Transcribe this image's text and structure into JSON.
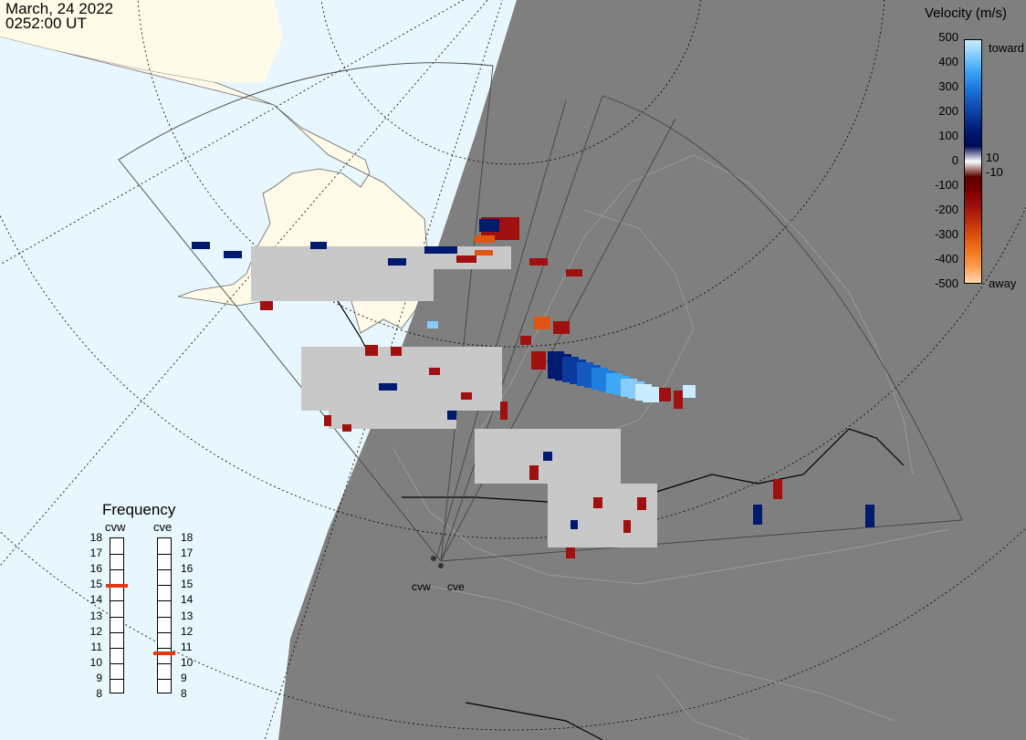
{
  "header": {
    "date": "March, 24 2022",
    "time": "0252:00 UT"
  },
  "legend": {
    "title": "Velocity (m/s)",
    "ticks": [
      "500",
      "400",
      "300",
      "200",
      "100",
      "10",
      "0",
      "-10",
      "-100",
      "-200",
      "-300",
      "-400",
      "-500"
    ],
    "toward_label": "toward",
    "away_label": "away",
    "colors": {
      "positive": [
        "#c9ecff",
        "#86ccff",
        "#3fa8f5",
        "#1f7fe0",
        "#1458c0",
        "#0a3a9c",
        "#001a70",
        "#000a55"
      ],
      "negative": [
        "#5a0000",
        "#7d0000",
        "#a01010",
        "#c0300a",
        "#e05510",
        "#f07a20",
        "#fca055",
        "#ffd6b0"
      ]
    }
  },
  "frequency": {
    "title": "Frequency",
    "radars": [
      {
        "code": "cvw",
        "selected_mhz": 14.9
      },
      {
        "code": "cve",
        "selected_mhz": 10.6
      }
    ],
    "scale": [
      "18",
      "17",
      "16",
      "15",
      "14",
      "13",
      "12",
      "11",
      "10",
      "9",
      "8"
    ]
  },
  "sites": {
    "cvw": "cvw",
    "cve": "cve"
  },
  "map_colors": {
    "ocean": "#e8f6fe",
    "land_lit": "#fffbe8",
    "night": "#7f7f7f",
    "ground_scatter": "#c8c8c8"
  }
}
